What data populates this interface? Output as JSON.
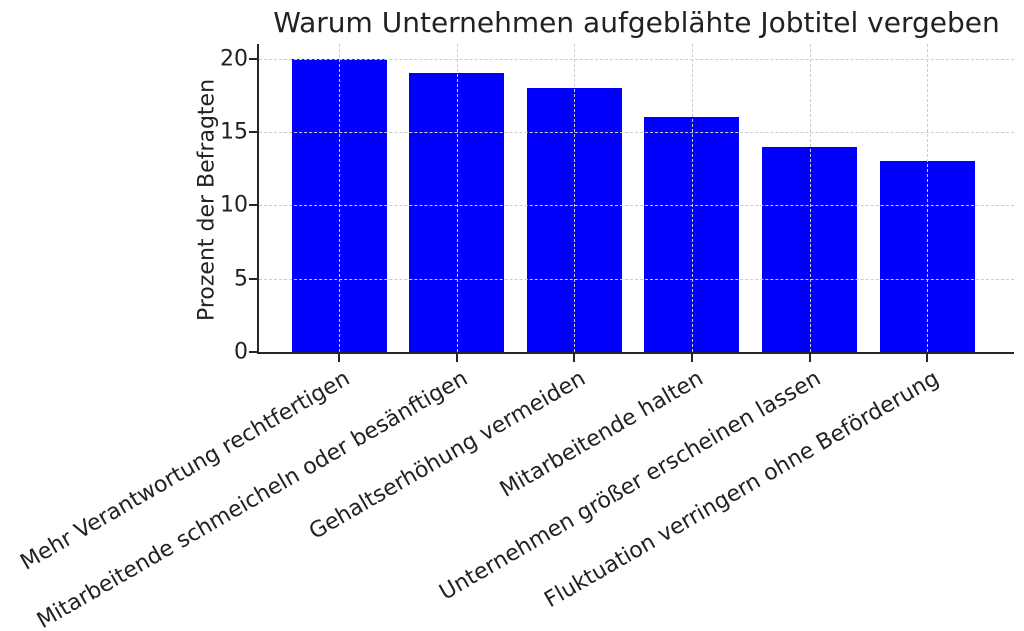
{
  "chart_data": {
    "type": "bar",
    "title": "Warum Unternehmen aufgeblähte Jobtitel vergeben",
    "xlabel": "",
    "ylabel": "Prozent der Befragten",
    "categories": [
      "Mehr Verantwortung rechtfertigen",
      "Mitarbeitende schmeicheln oder besänftigen",
      "Gehaltserhöhung vermeiden",
      "Mitarbeitende halten",
      "Unternehmen größer erscheinen lassen",
      "Fluktuation verringern ohne Beförderung"
    ],
    "values": [
      20,
      19,
      18,
      16,
      14,
      13
    ],
    "yticks": [
      0,
      5,
      10,
      15,
      20
    ],
    "ylim": [
      0,
      21
    ],
    "grid": true,
    "grid_style": "dashed",
    "grid_on_top_of_bars": true,
    "legend": "none",
    "x_tick_rotation_deg": 30,
    "bar_color": "#0101fb",
    "grid_color": "#cccccc",
    "spine_color": "#262626",
    "text_color": "#222222"
  }
}
